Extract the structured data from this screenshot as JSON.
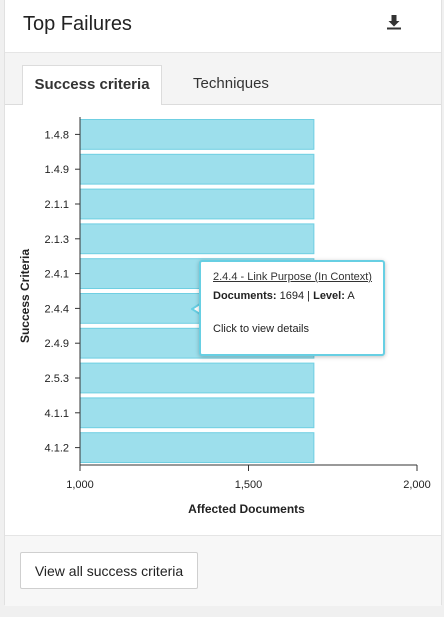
{
  "header": {
    "title": "Top Failures"
  },
  "tabs": [
    {
      "label": "Success criteria",
      "active": true
    },
    {
      "label": "Techniques",
      "active": false
    }
  ],
  "chart_data": {
    "type": "bar",
    "orientation": "horizontal",
    "categories": [
      "1.4.8",
      "1.4.9",
      "2.1.1",
      "2.1.3",
      "2.4.1",
      "2.4.4",
      "2.4.9",
      "2.5.3",
      "4.1.1",
      "4.1.2"
    ],
    "values": [
      1694,
      1694,
      1694,
      1694,
      1694,
      1694,
      1694,
      1694,
      1694,
      1694
    ],
    "xlabel": "Affected Documents",
    "ylabel": "Success Criteria",
    "xlim": [
      1000,
      2000
    ],
    "xticks": [
      "1,000",
      "1,500",
      "2,000"
    ],
    "bar_color": "#9ddfec",
    "bar_edge_color": "#6fcfe2"
  },
  "tooltip": {
    "title": "2.4.4 - Link Purpose (In Context)",
    "documents_label": "Documents:",
    "documents_value": "1694",
    "separator": "|",
    "level_label": "Level:",
    "level_value": "A",
    "hint": "Click to view details",
    "border_color": "#67cfe3"
  },
  "footer": {
    "button_label": "View all success criteria"
  }
}
